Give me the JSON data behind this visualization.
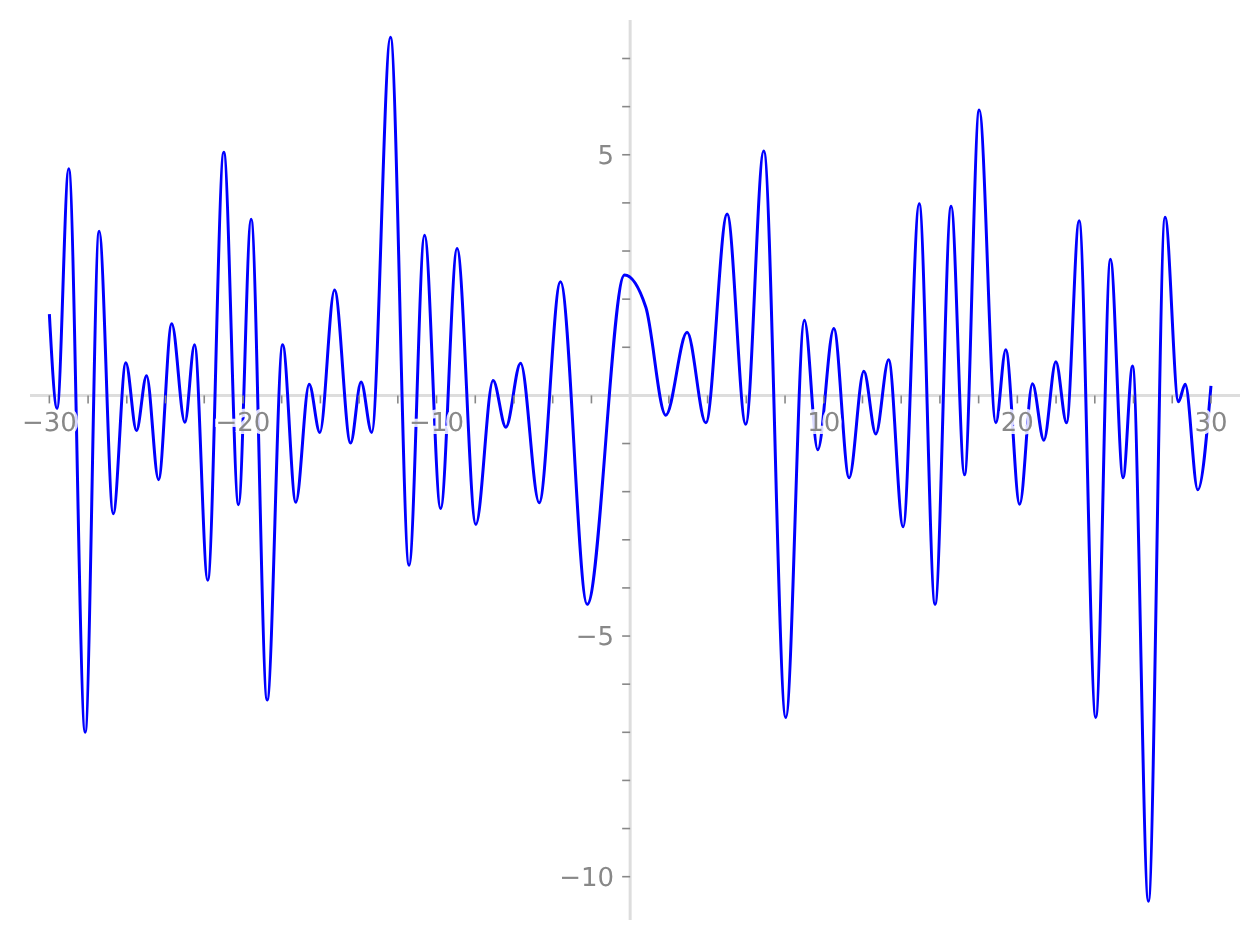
{
  "chart_data": {
    "type": "line",
    "xlim": [
      -31,
      31.5
    ],
    "ylim": [
      -10.9,
      7.8
    ],
    "xticks": [
      -30,
      {
        "value": -28,
        "label": null
      },
      {
        "value": -26,
        "label": null
      },
      {
        "value": -24,
        "label": null
      },
      {
        "value": -22,
        "label": null
      },
      -20,
      {
        "value": -18,
        "label": null
      },
      {
        "value": -16,
        "label": null
      },
      {
        "value": -14,
        "label": null
      },
      {
        "value": -12,
        "label": null
      },
      -10,
      {
        "value": -8,
        "label": null
      },
      {
        "value": -6,
        "label": null
      },
      {
        "value": -4,
        "label": null
      },
      {
        "value": -2,
        "label": null
      },
      {
        "value": 2,
        "label": null
      },
      {
        "value": 4,
        "label": null
      },
      {
        "value": 6,
        "label": null
      },
      {
        "value": 8,
        "label": null
      },
      10,
      {
        "value": 12,
        "label": null
      },
      {
        "value": 14,
        "label": null
      },
      {
        "value": 16,
        "label": null
      },
      {
        "value": 18,
        "label": null
      },
      20,
      {
        "value": 22,
        "label": null
      },
      {
        "value": 24,
        "label": null
      },
      {
        "value": 26,
        "label": null
      },
      {
        "value": 28,
        "label": null
      },
      30
    ],
    "yticks": [
      -10,
      {
        "value": -9,
        "label": null
      },
      {
        "value": -8,
        "label": null
      },
      {
        "value": -7,
        "label": null
      },
      {
        "value": -6,
        "label": null
      },
      -5,
      {
        "value": -4,
        "label": null
      },
      {
        "value": -3,
        "label": null
      },
      {
        "value": -2,
        "label": null
      },
      {
        "value": -1,
        "label": null
      },
      {
        "value": 1,
        "label": null
      },
      {
        "value": 2,
        "label": null
      },
      {
        "value": 3,
        "label": null
      },
      {
        "value": 4,
        "label": null
      },
      5,
      {
        "value": 6,
        "label": null
      },
      {
        "value": 7,
        "label": null
      }
    ],
    "grid": false,
    "marker": "none",
    "line_style": "solid",
    "series": [
      {
        "color": "#0000ff",
        "x": [
          -30.0,
          -29.6,
          -29.0,
          -28.15,
          -27.43,
          -26.7,
          -26.05,
          -25.5,
          -24.98,
          -24.36,
          -23.68,
          -23.0,
          -22.5,
          -21.82,
          -20.99,
          -20.23,
          -19.58,
          -18.75,
          -17.95,
          -17.27,
          -16.58,
          -16.03,
          -15.27,
          -14.44,
          -13.9,
          -13.35,
          -12.38,
          -11.42,
          -10.62,
          -9.79,
          -8.94,
          -7.97,
          -7.08,
          -6.42,
          -5.66,
          -4.7,
          -3.6,
          -2.22,
          -0.29,
          0.81,
          1.84,
          2.94,
          3.91,
          5.01,
          5.97,
          6.9,
          8.04,
          9.0,
          9.69,
          10.52,
          11.31,
          12.07,
          12.69,
          13.35,
          14.1,
          14.93,
          15.75,
          16.58,
          17.27,
          18.03,
          18.89,
          19.4,
          20.12,
          20.78,
          21.37,
          21.99,
          22.54,
          23.19,
          24.05,
          24.81,
          25.46,
          25.95,
          26.77,
          27.63,
          28.32,
          28.67,
          29.32,
          30.0
        ],
        "values": [
          1.69,
          -0.27,
          4.71,
          -7.0,
          3.41,
          -2.46,
          0.68,
          -0.73,
          0.41,
          -1.75,
          1.49,
          -0.56,
          1.05,
          -3.84,
          5.05,
          -2.27,
          3.66,
          -6.33,
          1.05,
          -2.22,
          0.23,
          -0.77,
          2.19,
          -0.99,
          0.28,
          -0.77,
          7.44,
          -3.53,
          3.33,
          -2.35,
          3.05,
          -2.68,
          0.31,
          -0.66,
          0.67,
          -2.23,
          2.36,
          -4.34,
          2.5,
          1.83,
          -0.41,
          1.31,
          -0.57,
          3.77,
          -0.6,
          5.08,
          -6.69,
          1.56,
          -1.13,
          1.39,
          -1.71,
          0.5,
          -0.8,
          0.74,
          -2.73,
          3.98,
          -4.34,
          3.93,
          -1.65,
          5.93,
          -0.57,
          0.95,
          -2.26,
          0.24,
          -0.93,
          0.7,
          -0.57,
          3.63,
          -6.69,
          2.83,
          -1.71,
          0.61,
          -10.51,
          3.7,
          -0.13,
          0.23,
          -1.96,
          0.2
        ]
      }
    ]
  }
}
